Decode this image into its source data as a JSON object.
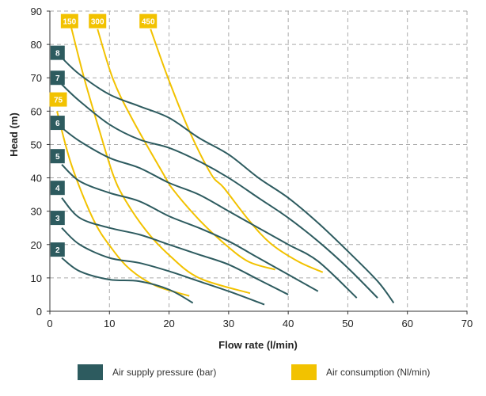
{
  "chart_data": {
    "type": "line",
    "xlabel": "Flow rate (l/min)",
    "ylabel": "Head (m)",
    "xlim": [
      0,
      70
    ],
    "ylim": [
      0,
      90
    ],
    "xticks": [
      "0",
      "10",
      "20",
      "30",
      "40",
      "50",
      "60",
      "70"
    ],
    "yticks": [
      "0",
      "10",
      "20",
      "30",
      "40",
      "50",
      "60",
      "70",
      "80",
      "90"
    ],
    "grid": true,
    "legend_position": "bottom",
    "legend": [
      {
        "label": "Air supply pressure (bar)",
        "color": "#2d5b5f"
      },
      {
        "label": "Air consumption (Nl/min)",
        "color": "#f2c200"
      }
    ],
    "pressure_series": [
      {
        "name": "2",
        "label_at": [
          1.3,
          18.5
        ],
        "points": [
          [
            2,
            16
          ],
          [
            5,
            12
          ],
          [
            10,
            9.5
          ],
          [
            15,
            9
          ],
          [
            20,
            6.5
          ],
          [
            24,
            2.5
          ]
        ]
      },
      {
        "name": "3",
        "label_at": [
          1.3,
          28
        ],
        "points": [
          [
            2,
            25
          ],
          [
            5,
            20
          ],
          [
            10,
            16
          ],
          [
            15,
            14.5
          ],
          [
            20,
            12
          ],
          [
            25,
            9
          ],
          [
            30,
            6
          ],
          [
            36,
            2
          ]
        ]
      },
      {
        "name": "4",
        "label_at": [
          1.3,
          37
        ],
        "points": [
          [
            2,
            34
          ],
          [
            5,
            28
          ],
          [
            10,
            25
          ],
          [
            15,
            23
          ],
          [
            20,
            20
          ],
          [
            25,
            17
          ],
          [
            30,
            14
          ],
          [
            35,
            9.5
          ],
          [
            40,
            5
          ]
        ]
      },
      {
        "name": "5",
        "label_at": [
          1.3,
          46.5
        ],
        "points": [
          [
            2,
            44
          ],
          [
            5,
            39
          ],
          [
            10,
            35.5
          ],
          [
            15,
            33
          ],
          [
            20,
            28.5
          ],
          [
            25,
            25
          ],
          [
            30,
            21
          ],
          [
            35,
            16
          ],
          [
            40,
            11
          ],
          [
            45,
            6
          ]
        ]
      },
      {
        "name": "6",
        "label_at": [
          1.3,
          56.5
        ],
        "points": [
          [
            2,
            55
          ],
          [
            5,
            51
          ],
          [
            10,
            46
          ],
          [
            15,
            43
          ],
          [
            20,
            38.5
          ],
          [
            25,
            35
          ],
          [
            30,
            30
          ],
          [
            35,
            25
          ],
          [
            40,
            20
          ],
          [
            45,
            15
          ],
          [
            51.5,
            4
          ]
        ]
      },
      {
        "name": "7",
        "label_at": [
          1.3,
          70
        ],
        "points": [
          [
            2,
            68
          ],
          [
            5,
            63
          ],
          [
            10,
            56
          ],
          [
            15,
            51.5
          ],
          [
            20,
            49
          ],
          [
            25,
            45
          ],
          [
            30,
            40
          ],
          [
            35,
            34
          ],
          [
            40,
            28
          ],
          [
            45,
            21
          ],
          [
            50,
            13
          ],
          [
            55,
            4
          ]
        ]
      },
      {
        "name": "8",
        "label_at": [
          1.3,
          77.5
        ],
        "points": [
          [
            2,
            76
          ],
          [
            5,
            71
          ],
          [
            10,
            65
          ],
          [
            15,
            61.5
          ],
          [
            20,
            58
          ],
          [
            25,
            52
          ],
          [
            30,
            47
          ],
          [
            35,
            40
          ],
          [
            40,
            34
          ],
          [
            45,
            26.5
          ],
          [
            50,
            18
          ],
          [
            55,
            9
          ],
          [
            57.7,
            2.5
          ]
        ]
      }
    ],
    "air_series": [
      {
        "name": "75",
        "label_at": [
          1.4,
          63.5
        ],
        "points": [
          [
            1.2,
            60
          ],
          [
            3.6,
            44
          ],
          [
            7.3,
            27.5
          ],
          [
            10.4,
            18.8
          ],
          [
            13.5,
            12.5
          ],
          [
            17.7,
            7.7
          ],
          [
            23.4,
            4.6
          ]
        ]
      },
      {
        "name": "150",
        "label_at": [
          3.3,
          87
        ],
        "points": [
          [
            3.6,
            85
          ],
          [
            5.8,
            69.6
          ],
          [
            8.4,
            53.7
          ],
          [
            10.6,
            41
          ],
          [
            12.5,
            33.8
          ],
          [
            16.1,
            24.3
          ],
          [
            19.8,
            17.2
          ],
          [
            25,
            10
          ],
          [
            33.6,
            5.4
          ]
        ]
      },
      {
        "name": "300",
        "label_at": [
          8,
          87
        ],
        "points": [
          [
            8,
            84.6
          ],
          [
            10.6,
            69.6
          ],
          [
            13.8,
            57.7
          ],
          [
            19.1,
            41
          ],
          [
            20.8,
            36.2
          ],
          [
            25,
            27.5
          ],
          [
            29.2,
            20.4
          ],
          [
            33.3,
            14.9
          ],
          [
            37.8,
            12.5
          ]
        ]
      },
      {
        "name": "450",
        "label_at": [
          16.5,
          87
        ],
        "points": [
          [
            16.9,
            84.6
          ],
          [
            19.9,
            69.6
          ],
          [
            23.5,
            53.7
          ],
          [
            27.1,
            41
          ],
          [
            29.2,
            37
          ],
          [
            33.3,
            27.5
          ],
          [
            37,
            20.4
          ],
          [
            41.7,
            14.9
          ],
          [
            45.8,
            11.7
          ]
        ]
      }
    ]
  }
}
